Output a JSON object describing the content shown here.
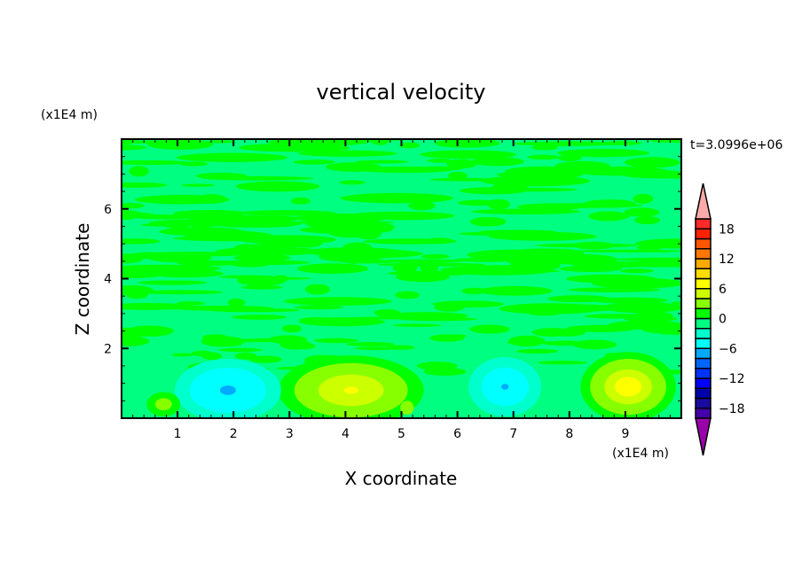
{
  "chart_data": {
    "type": "heatmap",
    "title": "vertical velocity",
    "xlabel": "X coordinate",
    "ylabel": "Z coordinate",
    "x_unit": "(x1E4 m)",
    "y_unit": "(x1E4 m)",
    "annotation": "t=3.0996e+06",
    "xlim": [
      0,
      10
    ],
    "ylim": [
      0,
      8
    ],
    "x_ticks": [
      1,
      2,
      3,
      4,
      5,
      6,
      7,
      8,
      9
    ],
    "y_ticks": [
      2,
      4,
      6
    ],
    "background_level_color": "#00ff80",
    "colorbar": {
      "levels": [
        -20,
        -18,
        -16,
        -14,
        -12,
        -10,
        -8,
        -6,
        -4,
        -2,
        0,
        2,
        4,
        6,
        8,
        10,
        12,
        14,
        16,
        18,
        20
      ],
      "colors": [
        "#4400aa",
        "#1a0aa0",
        "#0000aa",
        "#0000ff",
        "#0033ff",
        "#0066ff",
        "#00aaff",
        "#00ffff",
        "#00ffcc",
        "#00ff80",
        "#00ff00",
        "#88ff00",
        "#ccff00",
        "#ffff00",
        "#ffdd00",
        "#ffaa00",
        "#ff7700",
        "#ff5500",
        "#ff2200",
        "#ff2a2a"
      ],
      "over_color": "#ffaaaa",
      "under_color": "#9900aa",
      "tick_labels": [
        "18",
        "12",
        "6",
        "0",
        "−6",
        "−12",
        "−18"
      ],
      "tick_values": [
        18,
        12,
        6,
        0,
        -6,
        -12,
        -18
      ]
    },
    "features": [
      {
        "x": 4.1,
        "z": 0.8,
        "rx": 1.3,
        "rz": 1.0,
        "levels": [
          {
            "v": 0,
            "s": 1
          },
          {
            "v": 2,
            "s": 0.78
          },
          {
            "v": 4,
            "s": 0.45
          },
          {
            "v": 6,
            "s": 0.1
          }
        ]
      },
      {
        "x": 9.05,
        "z": 0.9,
        "rx": 0.85,
        "rz": 1.0,
        "levels": [
          {
            "v": 0,
            "s": 1
          },
          {
            "v": 2,
            "s": 0.8
          },
          {
            "v": 4,
            "s": 0.5
          },
          {
            "v": 6,
            "s": 0.28
          }
        ]
      },
      {
        "x": 1.9,
        "z": 0.8,
        "rx": 0.95,
        "rz": 0.9,
        "levels": [
          {
            "v": -4,
            "s": 1
          },
          {
            "v": -6,
            "s": 0.72
          },
          {
            "v": -8,
            "s": 0.15
          }
        ]
      },
      {
        "x": 6.85,
        "z": 0.9,
        "rx": 0.65,
        "rz": 0.85,
        "levels": [
          {
            "v": -4,
            "s": 1
          },
          {
            "v": -6,
            "s": 0.65
          },
          {
            "v": -8,
            "s": 0.1
          }
        ]
      },
      {
        "x": 0.75,
        "z": 0.4,
        "rx": 0.3,
        "rz": 0.35,
        "levels": [
          {
            "v": 0,
            "s": 1
          },
          {
            "v": 2,
            "s": 0.5
          }
        ]
      },
      {
        "x": 5.1,
        "z": 0.3,
        "rx": 0.12,
        "rz": 0.2,
        "levels": [
          {
            "v": 2,
            "s": 1
          }
        ]
      }
    ]
  }
}
